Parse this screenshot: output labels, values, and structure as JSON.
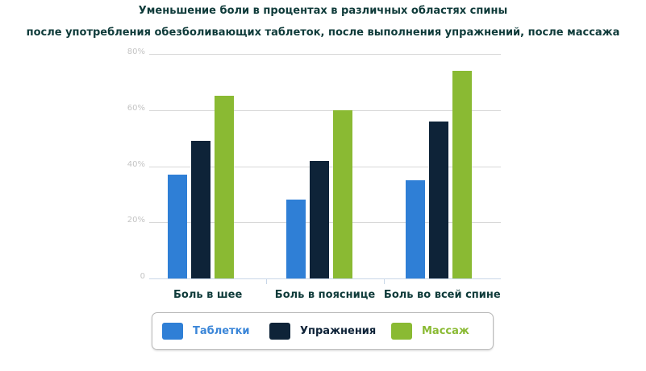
{
  "chart_data": {
    "type": "bar",
    "title": "Уменьшение боли в процентах в различных областях спины",
    "subtitle": "после употребления обезболивающих таблеток, после выполнения упражнений, после массажа",
    "categories": [
      "Боль в шее",
      "Боль в пояснице",
      "Боль во всей спине"
    ],
    "series": [
      {
        "name": "Таблетки",
        "color": "#2f7fd6",
        "values": [
          37,
          28,
          35
        ]
      },
      {
        "name": "Упражнения",
        "color": "#0e2338",
        "values": [
          49,
          42,
          56
        ]
      },
      {
        "name": "Массаж",
        "color": "#8aba33",
        "values": [
          65,
          60,
          74
        ]
      }
    ],
    "xlabel": "",
    "ylabel": "",
    "ylim": [
      0,
      80
    ],
    "yticks": [
      "0",
      "20%",
      "40%",
      "60%",
      "80%"
    ],
    "grid": true,
    "legend_position": "bottom"
  },
  "legend": {
    "items": [
      {
        "label": "Таблетки",
        "color": "#2f7fd6",
        "text_color": "#3b86d8"
      },
      {
        "label": "Упражнения",
        "color": "#0e2338",
        "text_color": "#0e2338"
      },
      {
        "label": "Массаж",
        "color": "#8aba33",
        "text_color": "#8aba33"
      }
    ]
  }
}
